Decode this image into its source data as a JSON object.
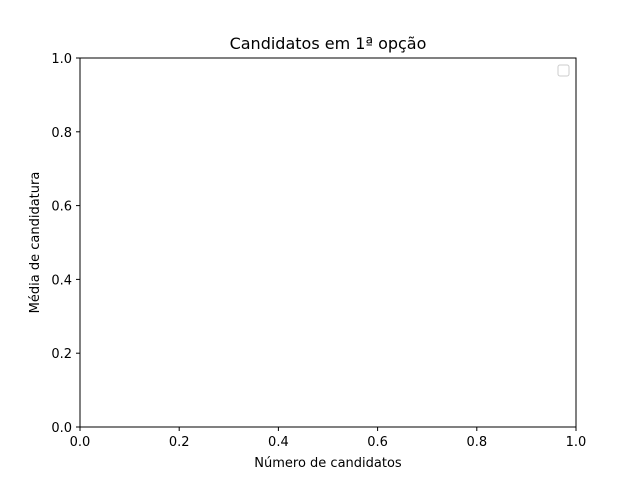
{
  "chart_data": {
    "type": "scatter",
    "title": "Candidatos em 1ª opção",
    "xlabel": "Número de candidatos",
    "ylabel": "Média de candidatura",
    "xlim": [
      0.0,
      1.0
    ],
    "ylim": [
      0.0,
      1.0
    ],
    "x_ticks": [
      "0.0",
      "0.2",
      "0.4",
      "0.6",
      "0.8",
      "1.0"
    ],
    "y_ticks": [
      "0.0",
      "0.2",
      "0.4",
      "0.6",
      "0.8",
      "1.0"
    ],
    "series": [],
    "legend": {
      "placement": "top-right",
      "entries": []
    },
    "grid": false
  },
  "colors": {
    "axes": "#000000",
    "background": "#ffffff",
    "legend_border": "#cccccc"
  }
}
